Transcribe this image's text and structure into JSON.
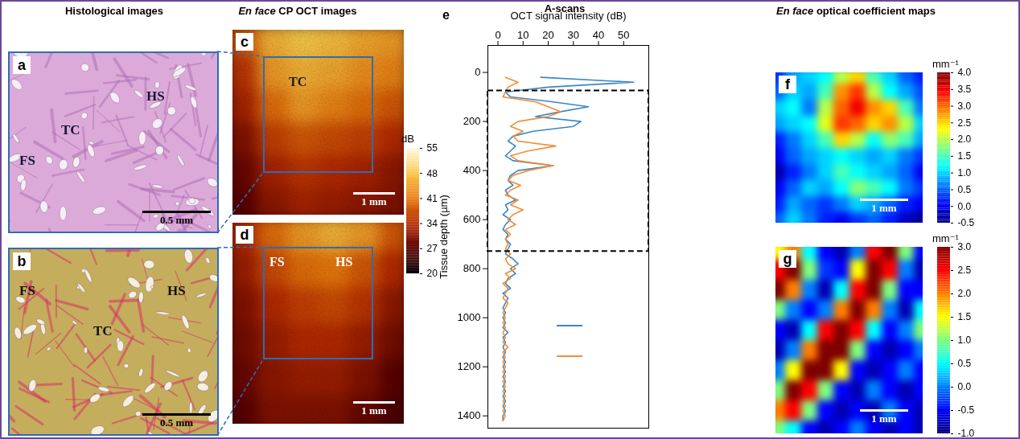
{
  "headers": [
    {
      "text": "Histological images"
    },
    {
      "italic": "En face",
      "text": "CP OCT images"
    },
    {
      "text": "A-scans"
    },
    {
      "italic": "En face",
      "text": "optical coefficient maps"
    }
  ],
  "histology": [
    {
      "letter": "a",
      "labels": [
        "FS",
        "TC",
        "HS"
      ],
      "scale_bar": "0.5 mm"
    },
    {
      "letter": "b",
      "labels": [
        "FS",
        "TC",
        "HS"
      ],
      "scale_bar": "0.5 mm"
    }
  ],
  "oct_images": [
    {
      "letter": "c",
      "labels": [
        "TC"
      ],
      "scale_bar": "1 mm",
      "cells": [
        [
          38,
          46,
          48,
          47,
          45,
          44
        ],
        [
          35,
          44,
          46,
          45,
          43,
          42
        ],
        [
          33,
          40,
          44,
          42,
          40,
          38
        ],
        [
          30,
          36,
          38,
          37,
          36,
          34
        ],
        [
          28,
          33,
          35,
          34,
          33,
          31
        ],
        [
          27,
          31,
          33,
          32,
          31,
          30
        ]
      ]
    },
    {
      "letter": "d",
      "labels": [
        "FS",
        "HS"
      ],
      "scale_bar": "1 mm",
      "cells": [
        [
          34,
          40,
          44,
          46,
          44,
          38
        ],
        [
          32,
          37,
          40,
          41,
          38,
          34
        ],
        [
          30,
          34,
          36,
          37,
          35,
          31
        ],
        [
          29,
          32,
          34,
          34,
          32,
          29
        ],
        [
          28,
          31,
          32,
          32,
          30,
          27
        ],
        [
          27,
          30,
          30,
          30,
          28,
          26
        ]
      ]
    }
  ],
  "oct_colorbar": {
    "title": "dB",
    "range": [
      20,
      55
    ],
    "ticks": [
      20,
      27,
      34,
      41,
      48,
      55
    ]
  },
  "chart_data": {
    "type": "line",
    "letter": "e",
    "xlabel": "OCT signal intensity (dB)",
    "ylabel": "Tissue depth (µm)",
    "y": [
      20,
      40,
      60,
      80,
      100,
      120,
      140,
      160,
      180,
      200,
      220,
      240,
      260,
      280,
      300,
      320,
      340,
      360,
      380,
      400,
      420,
      440,
      460,
      480,
      500,
      520,
      540,
      560,
      580,
      600,
      620,
      640,
      660,
      680,
      700,
      720,
      740,
      760,
      780,
      800,
      820,
      840,
      860,
      880,
      900,
      920,
      940,
      960,
      980,
      1000,
      1020,
      1040,
      1060,
      1080,
      1100,
      1120,
      1140,
      1160,
      1180,
      1200,
      1220,
      1240,
      1260,
      1280,
      1300,
      1320,
      1340,
      1360,
      1380,
      1400,
      1420
    ],
    "series": [
      {
        "color": "#3a86c8",
        "values": [
          17,
          54,
          20,
          3,
          5,
          22,
          36,
          25,
          15,
          33,
          30,
          14,
          6,
          4,
          7,
          5,
          3,
          6,
          22,
          8,
          5,
          4,
          6,
          3,
          4,
          7,
          3,
          4,
          2,
          5,
          3,
          2,
          4,
          3,
          5,
          4,
          3,
          6,
          8,
          5,
          7,
          4,
          3,
          5,
          2,
          4,
          3,
          2,
          3,
          2,
          3,
          2,
          4,
          2,
          3,
          2,
          3,
          2,
          3,
          2,
          3,
          2,
          3,
          2,
          3,
          2,
          3,
          2,
          3,
          2,
          2
        ]
      },
      {
        "color": "#f28c34",
        "values": [
          3,
          8,
          4,
          3,
          2,
          15,
          20,
          25,
          20,
          8,
          5,
          10,
          6,
          8,
          23,
          12,
          5,
          8,
          22,
          12,
          6,
          4,
          9,
          5,
          3,
          8,
          5,
          10,
          6,
          4,
          7,
          3,
          5,
          3,
          4,
          3,
          5,
          3,
          4,
          7,
          3,
          5,
          2,
          4,
          3,
          2,
          4,
          3,
          2,
          3,
          2,
          3,
          2,
          3,
          2,
          4,
          2,
          3,
          2,
          3,
          2,
          3,
          2,
          3,
          2,
          3,
          2,
          3,
          2,
          3,
          2
        ]
      }
    ],
    "xlim": [
      -4,
      60
    ],
    "xticks": [
      0,
      10,
      20,
      30,
      40,
      50
    ],
    "ylim": [
      -110,
      1450
    ],
    "yticks": [
      0,
      200,
      400,
      600,
      800,
      1000,
      1200,
      1400
    ],
    "roi": {
      "y": [
        75,
        730
      ]
    },
    "legend": "center"
  },
  "maps": [
    {
      "letter": "f",
      "unit": "mm⁻¹",
      "scale_bar": "1 mm",
      "range": [
        -0.5,
        4
      ],
      "ticks": [
        {
          "value": 4,
          "label": "4.0"
        },
        3.5,
        {
          "value": 3,
          "label": "3.0"
        },
        2.5,
        {
          "value": 2,
          "label": "2.0"
        },
        1.5,
        {
          "value": 1,
          "label": "1.0"
        },
        0.5,
        {
          "value": 0,
          "label": "0.0"
        },
        -0.5
      ],
      "cells": [
        [
          0.3,
          0.8,
          1.0,
          1.2,
          2.0,
          2.5,
          1.5,
          1.0,
          0.5,
          0.2
        ],
        [
          0.5,
          1.0,
          0.8,
          1.5,
          2.8,
          3.2,
          2.0,
          1.2,
          0.8,
          0.4
        ],
        [
          1.0,
          1.2,
          0.6,
          2.0,
          3.0,
          3.5,
          2.8,
          2.5,
          1.5,
          0.6
        ],
        [
          0.8,
          1.0,
          1.2,
          2.2,
          3.2,
          3.0,
          2.5,
          2.8,
          2.0,
          1.0
        ],
        [
          0.2,
          0.6,
          1.0,
          1.5,
          2.5,
          2.0,
          1.2,
          1.8,
          1.5,
          0.8
        ],
        [
          0.0,
          0.5,
          0.8,
          1.0,
          1.2,
          1.0,
          0.8,
          1.0,
          0.6,
          0.3
        ],
        [
          -0.3,
          0.2,
          0.6,
          1.0,
          1.5,
          1.2,
          1.0,
          0.8,
          0.5,
          0.0
        ],
        [
          0.0,
          0.5,
          1.0,
          0.8,
          1.2,
          1.8,
          1.5,
          1.2,
          0.6,
          0.3
        ],
        [
          0.2,
          0.8,
          0.5,
          0.3,
          0.6,
          1.0,
          0.8,
          0.5,
          0.2,
          0.0
        ],
        [
          0.5,
          1.0,
          0.6,
          0.2,
          0.0,
          0.3,
          0.5,
          0.2,
          -0.2,
          -0.4
        ]
      ]
    },
    {
      "letter": "g",
      "unit": "mm⁻¹",
      "scale_bar": "1 mm",
      "range": [
        -1,
        3
      ],
      "ticks": [
        {
          "value": 3,
          "label": "3.0"
        },
        2.5,
        {
          "value": 2,
          "label": "2.0"
        },
        1.5,
        {
          "value": 1,
          "label": "1.0"
        },
        0.5,
        {
          "value": 0,
          "label": "0.0"
        },
        -0.5,
        {
          "value": -1,
          "label": "-1.0"
        }
      ],
      "cells": [
        [
          1.5,
          2.0,
          0.5,
          -0.5,
          -0.8,
          0.0,
          2.5,
          3.0,
          1.0,
          -0.5
        ],
        [
          2.5,
          3.0,
          1.0,
          -0.3,
          -0.5,
          1.5,
          3.0,
          2.5,
          0.0,
          -0.8
        ],
        [
          3.0,
          2.0,
          0.0,
          -0.8,
          0.5,
          2.5,
          3.0,
          1.0,
          -0.5,
          -0.5
        ],
        [
          1.0,
          0.0,
          -0.5,
          0.0,
          2.0,
          3.0,
          2.0,
          0.0,
          -0.8,
          0.5
        ],
        [
          -0.5,
          -0.8,
          0.5,
          2.5,
          3.0,
          2.5,
          0.5,
          -0.5,
          0.0,
          1.0
        ],
        [
          -0.8,
          0.0,
          2.0,
          3.0,
          3.0,
          1.0,
          -0.5,
          -0.8,
          -0.5,
          0.0
        ],
        [
          0.0,
          1.5,
          3.0,
          3.0,
          1.5,
          -0.5,
          -0.8,
          -0.5,
          0.0,
          -0.5
        ],
        [
          1.0,
          3.0,
          2.5,
          1.0,
          -0.5,
          -0.8,
          0.0,
          -0.5,
          -0.8,
          -0.5
        ],
        [
          2.0,
          2.5,
          1.0,
          -0.5,
          -0.8,
          -0.5,
          -0.8,
          0.0,
          -0.5,
          -0.8
        ],
        [
          1.0,
          0.5,
          -0.5,
          -0.8,
          -0.5,
          0.0,
          -0.5,
          -0.8,
          -0.5,
          -0.8
        ]
      ]
    }
  ]
}
